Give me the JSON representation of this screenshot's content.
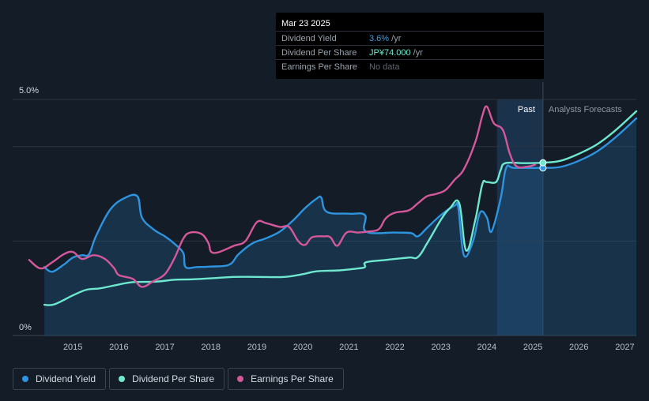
{
  "tooltip": {
    "date": "Mar 23 2025",
    "rows": [
      {
        "label": "Dividend Yield",
        "value": "3.6%",
        "unit": " /yr",
        "color": "#3b9de4"
      },
      {
        "label": "Dividend Per Share",
        "value": "JP¥74.000",
        "unit": " /yr",
        "color": "#6ee8cf"
      },
      {
        "label": "Earnings Per Share",
        "value": "No data",
        "unit": "",
        "color": "#5f6670"
      }
    ]
  },
  "past_label": "Past",
  "forecast_label": "Analysts Forecasts",
  "legend": [
    {
      "label": "Dividend Yield",
      "color": "#2e94e0"
    },
    {
      "label": "Dividend Per Share",
      "color": "#6ee8cf"
    },
    {
      "label": "Earnings Per Share",
      "color": "#d4589a"
    }
  ],
  "chart_data": {
    "type": "line",
    "y_tick_labels": [
      "5.0%",
      "0%"
    ],
    "ylim": [
      0,
      5.0
    ],
    "xlim": [
      2014.0,
      2027.25
    ],
    "x_ticks": [
      2015,
      2016,
      2017,
      2018,
      2019,
      2020,
      2021,
      2022,
      2023,
      2024,
      2025,
      2026,
      2027
    ],
    "past_end": 2025.22,
    "forecast_shade_start": 2024.22,
    "grid": true,
    "legend_position": "bottom-left",
    "series": [
      {
        "name": "Dividend Yield",
        "color": "#2e94e0",
        "points": [
          [
            2014.38,
            1.45
          ],
          [
            2014.55,
            1.35
          ],
          [
            2014.8,
            1.5
          ],
          [
            2015.0,
            1.65
          ],
          [
            2015.2,
            1.7
          ],
          [
            2015.35,
            1.72
          ],
          [
            2015.5,
            2.1
          ],
          [
            2015.8,
            2.65
          ],
          [
            2016.1,
            2.9
          ],
          [
            2016.4,
            2.95
          ],
          [
            2016.5,
            2.5
          ],
          [
            2016.75,
            2.25
          ],
          [
            2017.0,
            2.1
          ],
          [
            2017.2,
            1.95
          ],
          [
            2017.4,
            1.75
          ],
          [
            2017.45,
            1.45
          ],
          [
            2017.7,
            1.45
          ],
          [
            2018.0,
            1.46
          ],
          [
            2018.4,
            1.5
          ],
          [
            2018.6,
            1.72
          ],
          [
            2018.9,
            1.95
          ],
          [
            2019.2,
            2.06
          ],
          [
            2019.5,
            2.2
          ],
          [
            2019.8,
            2.45
          ],
          [
            2020.05,
            2.7
          ],
          [
            2020.3,
            2.9
          ],
          [
            2020.4,
            2.92
          ],
          [
            2020.52,
            2.62
          ],
          [
            2021.0,
            2.58
          ],
          [
            2021.35,
            2.55
          ],
          [
            2021.37,
            2.2
          ],
          [
            2022.0,
            2.18
          ],
          [
            2022.35,
            2.17
          ],
          [
            2022.5,
            2.1
          ],
          [
            2022.7,
            2.28
          ],
          [
            2023.0,
            2.55
          ],
          [
            2023.3,
            2.75
          ],
          [
            2023.38,
            2.7
          ],
          [
            2023.5,
            1.7
          ],
          [
            2023.7,
            2.0
          ],
          [
            2023.85,
            2.6
          ],
          [
            2024.0,
            2.5
          ],
          [
            2024.1,
            2.2
          ],
          [
            2024.3,
            2.9
          ],
          [
            2024.42,
            3.55
          ],
          [
            2024.6,
            3.55
          ],
          [
            2025.22,
            3.55
          ],
          [
            2025.6,
            3.57
          ],
          [
            2026.0,
            3.7
          ],
          [
            2026.4,
            3.9
          ],
          [
            2026.8,
            4.2
          ],
          [
            2027.25,
            4.6
          ]
        ]
      },
      {
        "name": "Dividend Per Share",
        "color": "#6ee8cf",
        "points": [
          [
            2014.38,
            0.65
          ],
          [
            2014.6,
            0.66
          ],
          [
            2015.0,
            0.85
          ],
          [
            2015.3,
            0.97
          ],
          [
            2015.6,
            1.0
          ],
          [
            2016.0,
            1.08
          ],
          [
            2016.3,
            1.13
          ],
          [
            2016.8,
            1.14
          ],
          [
            2017.2,
            1.18
          ],
          [
            2017.6,
            1.19
          ],
          [
            2018.0,
            1.21
          ],
          [
            2018.5,
            1.24
          ],
          [
            2019.0,
            1.24
          ],
          [
            2019.6,
            1.24
          ],
          [
            2020.0,
            1.3
          ],
          [
            2020.3,
            1.36
          ],
          [
            2020.8,
            1.38
          ],
          [
            2021.2,
            1.42
          ],
          [
            2021.35,
            1.45
          ],
          [
            2021.37,
            1.55
          ],
          [
            2021.8,
            1.6
          ],
          [
            2022.3,
            1.65
          ],
          [
            2022.5,
            1.66
          ],
          [
            2022.7,
            1.95
          ],
          [
            2023.0,
            2.45
          ],
          [
            2023.2,
            2.7
          ],
          [
            2023.4,
            2.8
          ],
          [
            2023.55,
            1.8
          ],
          [
            2023.75,
            2.45
          ],
          [
            2023.9,
            3.2
          ],
          [
            2024.0,
            3.25
          ],
          [
            2024.2,
            3.25
          ],
          [
            2024.3,
            3.5
          ],
          [
            2024.4,
            3.65
          ],
          [
            2024.8,
            3.65
          ],
          [
            2025.22,
            3.66
          ],
          [
            2025.6,
            3.7
          ],
          [
            2026.0,
            3.85
          ],
          [
            2026.4,
            4.05
          ],
          [
            2026.8,
            4.35
          ],
          [
            2027.25,
            4.75
          ]
        ]
      },
      {
        "name": "Earnings Per Share",
        "color": "#d4589a",
        "points": [
          [
            2014.05,
            1.6
          ],
          [
            2014.3,
            1.42
          ],
          [
            2014.55,
            1.55
          ],
          [
            2014.8,
            1.72
          ],
          [
            2015.0,
            1.77
          ],
          [
            2015.2,
            1.62
          ],
          [
            2015.45,
            1.7
          ],
          [
            2015.7,
            1.62
          ],
          [
            2015.9,
            1.42
          ],
          [
            2016.0,
            1.28
          ],
          [
            2016.3,
            1.2
          ],
          [
            2016.5,
            1.03
          ],
          [
            2016.75,
            1.15
          ],
          [
            2017.0,
            1.3
          ],
          [
            2017.2,
            1.62
          ],
          [
            2017.4,
            2.05
          ],
          [
            2017.55,
            2.18
          ],
          [
            2017.8,
            2.15
          ],
          [
            2017.95,
            1.95
          ],
          [
            2018.0,
            1.78
          ],
          [
            2018.15,
            1.76
          ],
          [
            2018.5,
            1.9
          ],
          [
            2018.75,
            2.0
          ],
          [
            2019.0,
            2.4
          ],
          [
            2019.2,
            2.38
          ],
          [
            2019.5,
            2.3
          ],
          [
            2019.7,
            2.3
          ],
          [
            2019.9,
            2.0
          ],
          [
            2020.05,
            1.92
          ],
          [
            2020.2,
            2.08
          ],
          [
            2020.45,
            2.1
          ],
          [
            2020.6,
            2.08
          ],
          [
            2020.75,
            1.9
          ],
          [
            2020.95,
            2.18
          ],
          [
            2021.2,
            2.18
          ],
          [
            2021.4,
            2.2
          ],
          [
            2021.65,
            2.25
          ],
          [
            2021.8,
            2.48
          ],
          [
            2022.0,
            2.6
          ],
          [
            2022.3,
            2.65
          ],
          [
            2022.5,
            2.8
          ],
          [
            2022.7,
            2.95
          ],
          [
            2022.9,
            3.0
          ],
          [
            2023.1,
            3.08
          ],
          [
            2023.3,
            3.3
          ],
          [
            2023.5,
            3.52
          ],
          [
            2023.75,
            4.1
          ],
          [
            2023.9,
            4.65
          ],
          [
            2024.0,
            4.85
          ],
          [
            2024.15,
            4.5
          ],
          [
            2024.35,
            4.35
          ],
          [
            2024.5,
            3.85
          ],
          [
            2024.65,
            3.58
          ],
          [
            2024.9,
            3.58
          ],
          [
            2025.05,
            3.62
          ]
        ]
      }
    ],
    "markers": [
      {
        "series": "Dividend Yield",
        "x": 2025.22,
        "y": 3.55
      },
      {
        "series": "Dividend Per Share",
        "x": 2025.22,
        "y": 3.66
      }
    ]
  }
}
